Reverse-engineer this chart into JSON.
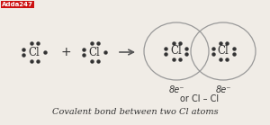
{
  "bg_color": "#f0ece6",
  "logo_text": "Adda247",
  "logo_bg": "#cc1111",
  "logo_fg": "#ffffff",
  "arrow_color": "#555555",
  "dot_color": "#333333",
  "circle_edge_color": "#999999",
  "text_color": "#333333",
  "footnote1": "8e⁻",
  "footnote2": "8e⁻",
  "footnote3": "or Cl – Cl",
  "caption": "Covalent bond between two Cl atoms",
  "figw": 3.0,
  "figh": 1.39,
  "dpi": 100
}
